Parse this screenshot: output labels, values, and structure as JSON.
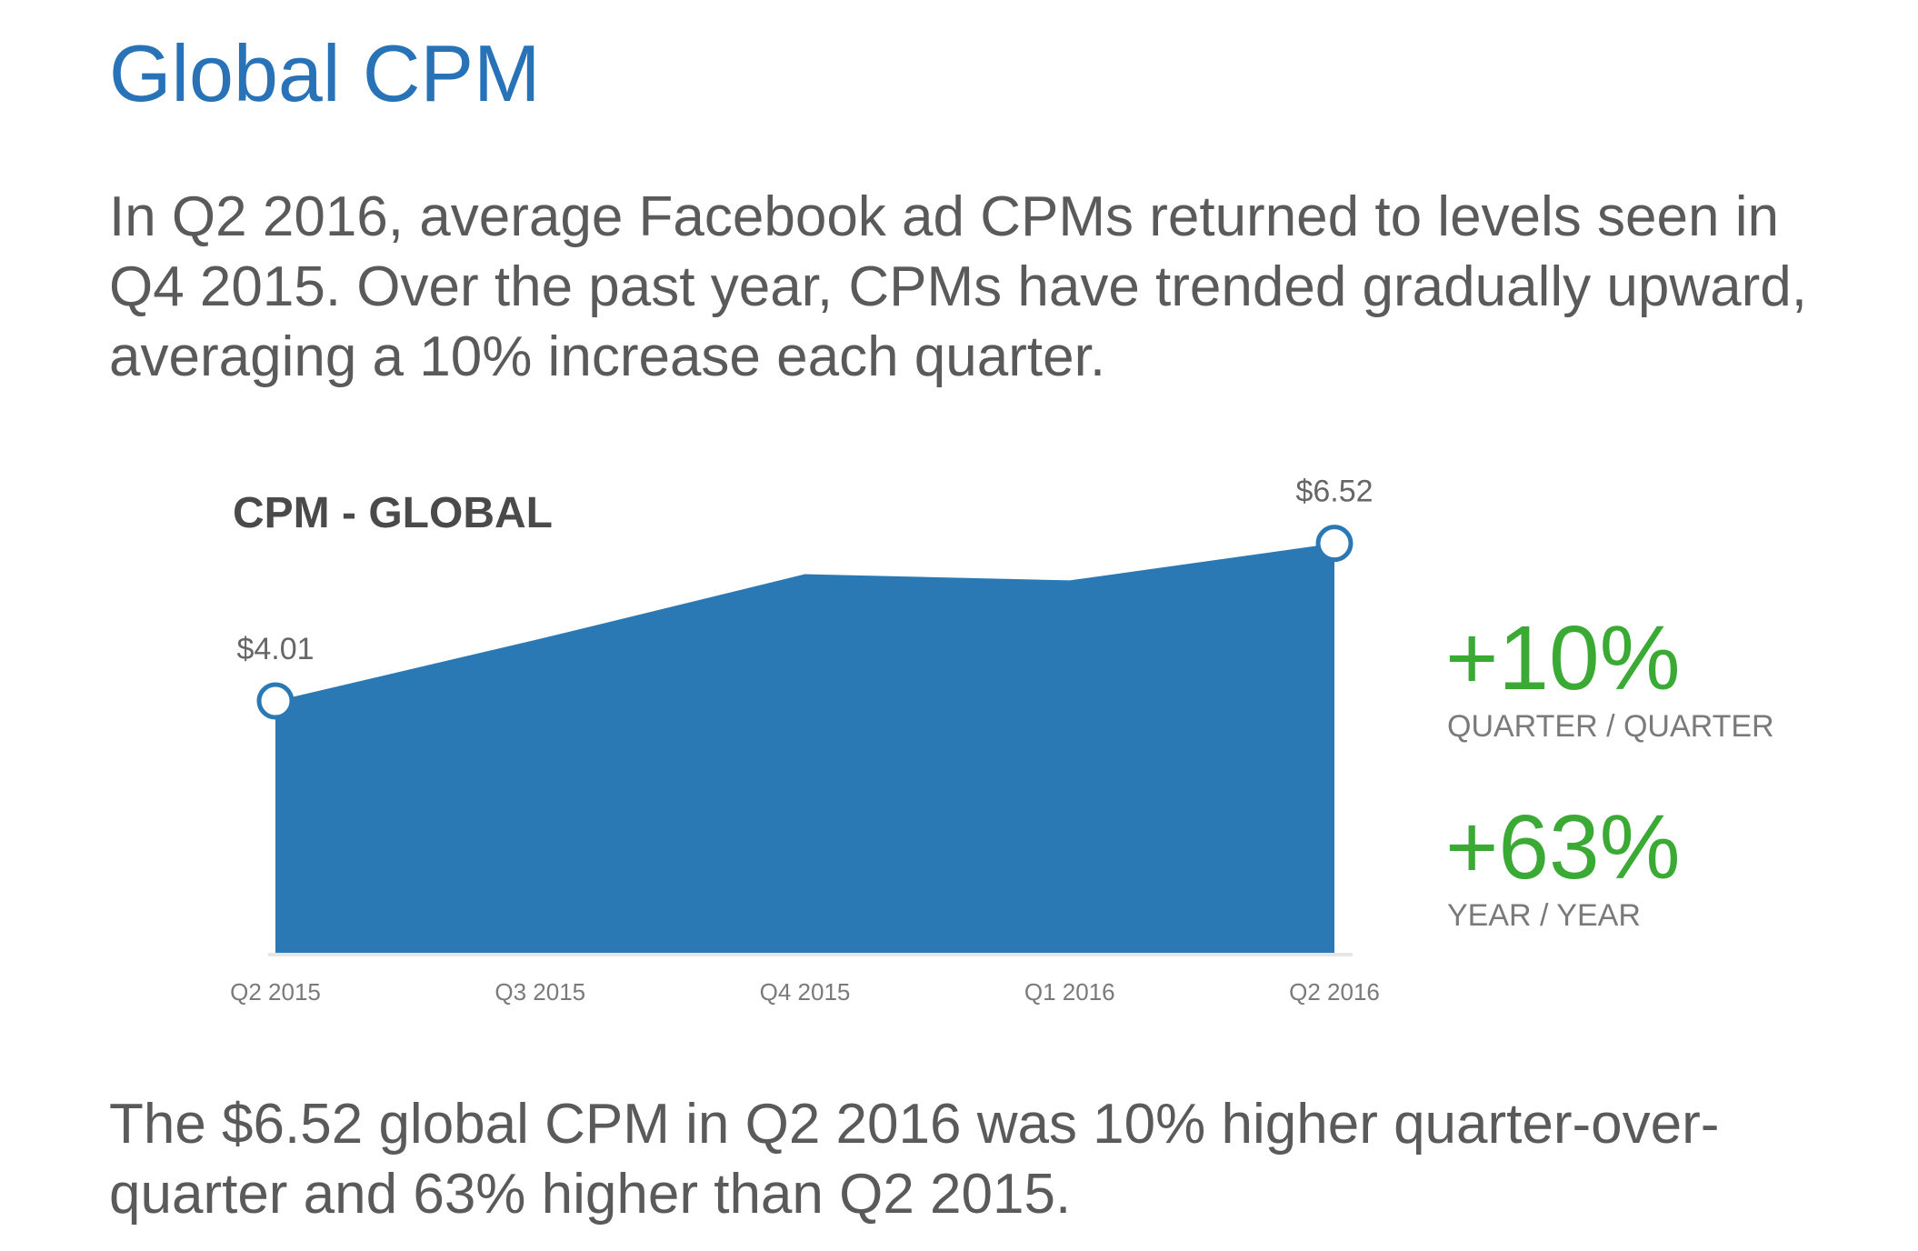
{
  "header": {
    "title": "Global CPM",
    "intro": "In Q2 2016, average Facebook ad CPMs returned to levels seen in Q4 2015. Over the past year, CPMs have trended gradually upward, averaging a 10% increase each quarter."
  },
  "chart_data": {
    "type": "area",
    "title": "CPM - GLOBAL",
    "xlabel": "",
    "ylabel": "",
    "categories": [
      "Q2 2015",
      "Q3 2015",
      "Q4 2015",
      "Q1 2016",
      "Q2 2016"
    ],
    "values": [
      4.01,
      5.0,
      6.03,
      5.93,
      6.52
    ],
    "data_labels": {
      "0": "$4.01",
      "4": "$6.52"
    },
    "highlight_points": [
      0,
      4
    ],
    "ylim": [
      0,
      7.5
    ],
    "grid": false,
    "legend": "none",
    "fill_color": "#2a78b4"
  },
  "stats": [
    {
      "value": "+10%",
      "caption": "QUARTER / QUARTER"
    },
    {
      "value": "+63%",
      "caption": "YEAR / YEAR"
    }
  ],
  "colors": {
    "title": "#2872b8",
    "accent_green": "#3aaa35",
    "body_text": "#5a5a5a"
  },
  "footer": {
    "summary": "The $6.52 global CPM in Q2 2016 was 10% higher quarter-over-quarter and 63% higher than Q2 2015."
  }
}
